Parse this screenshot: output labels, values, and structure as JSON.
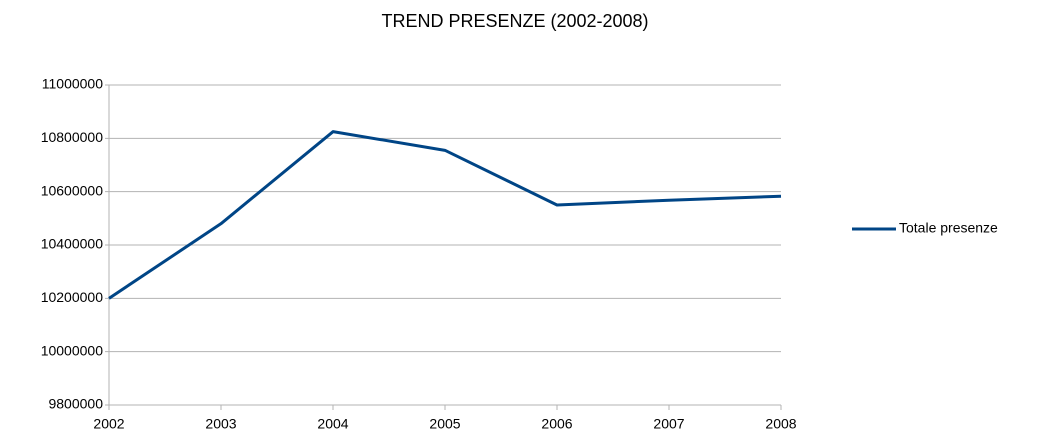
{
  "chart_data": {
    "type": "line",
    "title": "TREND PRESENZE (2002-2008)",
    "categories": [
      "2002",
      "2003",
      "2004",
      "2005",
      "2006",
      "2007",
      "2008"
    ],
    "series": [
      {
        "name": "Totale presenze",
        "color": "#004586",
        "values": [
          10200000,
          10480000,
          10825000,
          10755000,
          10550000,
          10568000,
          10583000
        ]
      }
    ],
    "ylim": [
      9800000,
      11000000
    ],
    "yticks": [
      9800000,
      10000000,
      10200000,
      10400000,
      10600000,
      10800000,
      11000000
    ],
    "grid": true,
    "legend": "right"
  }
}
